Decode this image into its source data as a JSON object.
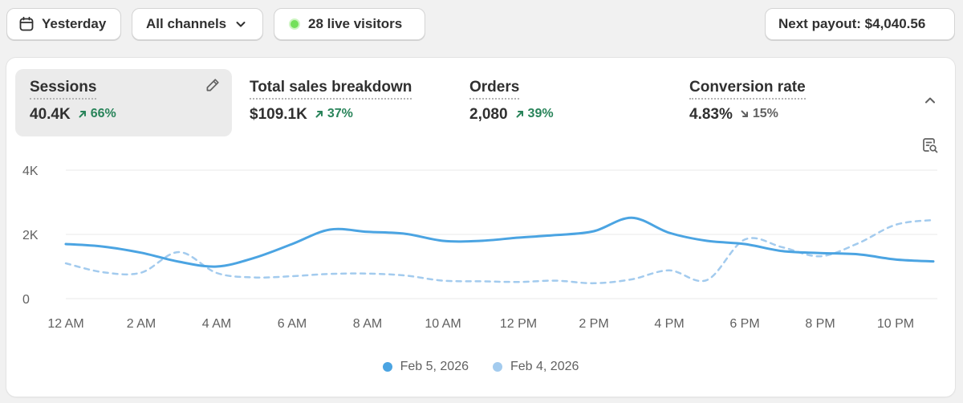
{
  "toolbar": {
    "date_label": "Yesterday",
    "channel_label": "All channels",
    "live_label": "28 live visitors",
    "payout_label": "Next payout: $4,040.56"
  },
  "metrics": [
    {
      "label": "Sessions",
      "value": "40.4K",
      "change": "66%",
      "direction": "up"
    },
    {
      "label": "Total sales breakdown",
      "value": "$109.1K",
      "change": "37%",
      "direction": "up"
    },
    {
      "label": "Orders",
      "value": "2,080",
      "change": "39%",
      "direction": "up"
    },
    {
      "label": "Conversion rate",
      "value": "4.83%",
      "change": "15%",
      "direction": "down"
    }
  ],
  "colors": {
    "current": "#4ba4e2",
    "previous": "#a3cbee",
    "up": "#29845a",
    "live": "#73e05a"
  },
  "chart_data": {
    "type": "line",
    "title": "Sessions",
    "x": [
      "12 AM",
      "",
      "2 AM",
      "",
      "4 AM",
      "",
      "6 AM",
      "",
      "8 AM",
      "",
      "10 AM",
      "",
      "12 PM",
      "",
      "2 PM",
      "",
      "4 PM",
      "",
      "6 PM",
      "",
      "8 PM",
      "",
      "10 PM",
      ""
    ],
    "x_tick_labels": [
      "12 AM",
      "2 AM",
      "4 AM",
      "6 AM",
      "8 AM",
      "10 AM",
      "12 PM",
      "2 PM",
      "4 PM",
      "6 PM",
      "8 PM",
      "10 PM"
    ],
    "y_tick_labels": [
      "4K",
      "2K",
      "0"
    ],
    "ylim": [
      0,
      4000
    ],
    "yticks": [
      4000,
      2000,
      0
    ],
    "xlabel": "",
    "ylabel": "",
    "grid": true,
    "series": [
      {
        "name": "Feb 5, 2026",
        "style": "solid",
        "values": [
          1700,
          1620,
          1430,
          1150,
          1000,
          1270,
          1700,
          2150,
          2080,
          2020,
          1800,
          1800,
          1900,
          1980,
          2100,
          2520,
          2050,
          1800,
          1700,
          1480,
          1420,
          1380,
          1220,
          1160
        ]
      },
      {
        "name": "Feb 4, 2026",
        "style": "dashed",
        "values": [
          1100,
          820,
          810,
          1450,
          800,
          660,
          700,
          770,
          780,
          720,
          560,
          540,
          520,
          560,
          480,
          600,
          880,
          580,
          1840,
          1600,
          1320,
          1720,
          2300,
          2450
        ]
      }
    ]
  }
}
